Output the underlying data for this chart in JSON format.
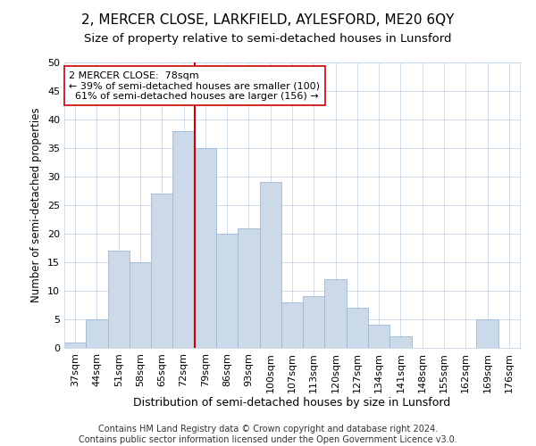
{
  "title": "2, MERCER CLOSE, LARKFIELD, AYLESFORD, ME20 6QY",
  "subtitle": "Size of property relative to semi-detached houses in Lunsford",
  "xlabel": "Distribution of semi-detached houses by size in Lunsford",
  "ylabel": "Number of semi-detached properties",
  "categories": [
    "37sqm",
    "44sqm",
    "51sqm",
    "58sqm",
    "65sqm",
    "72sqm",
    "79sqm",
    "86sqm",
    "93sqm",
    "100sqm",
    "107sqm",
    "113sqm",
    "120sqm",
    "127sqm",
    "134sqm",
    "141sqm",
    "148sqm",
    "155sqm",
    "162sqm",
    "169sqm",
    "176sqm"
  ],
  "values": [
    1,
    5,
    17,
    15,
    27,
    38,
    35,
    20,
    21,
    29,
    8,
    9,
    12,
    7,
    4,
    2,
    0,
    0,
    0,
    5,
    0
  ],
  "bar_color": "#ccd9e8",
  "bar_edge_color": "#9ab8d5",
  "vline_x_idx": 6,
  "vline_color": "#cc0000",
  "annotation_text": "2 MERCER CLOSE:  78sqm\n← 39% of semi-detached houses are smaller (100)\n  61% of semi-detached houses are larger (156) →",
  "annotation_box_color": "#ffffff",
  "annotation_box_edge": "#cc0000",
  "ylim": [
    0,
    50
  ],
  "yticks": [
    0,
    5,
    10,
    15,
    20,
    25,
    30,
    35,
    40,
    45,
    50
  ],
  "footer_text": "Contains HM Land Registry data © Crown copyright and database right 2024.\nContains public sector information licensed under the Open Government Licence v3.0.",
  "title_fontsize": 11,
  "subtitle_fontsize": 9.5,
  "xlabel_fontsize": 9,
  "ylabel_fontsize": 8.5,
  "tick_fontsize": 8,
  "annotation_fontsize": 8,
  "footer_fontsize": 7,
  "background_color": "#ffffff",
  "grid_color": "#c8d8e8"
}
